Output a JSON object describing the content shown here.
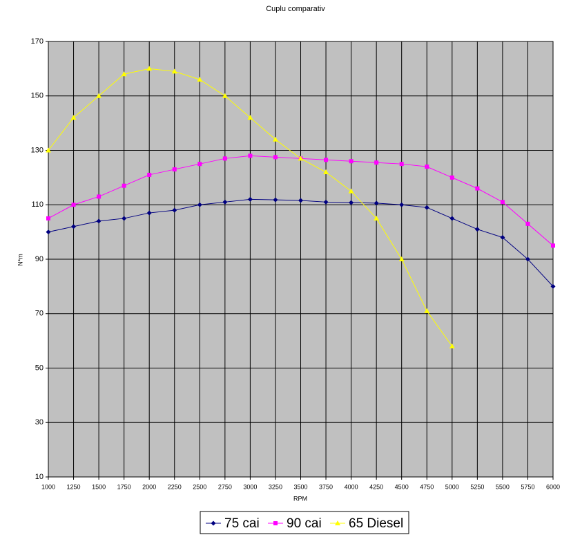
{
  "chart_data": {
    "type": "line",
    "title": "Cuplu comparativ",
    "x_label": "RPM",
    "y_label": "N*m",
    "categories": [
      1000,
      1250,
      1500,
      1750,
      2000,
      2250,
      2500,
      2750,
      3000,
      3250,
      3500,
      3750,
      4000,
      4250,
      4500,
      4750,
      5000,
      5250,
      5500,
      5750,
      6000
    ],
    "ylim": [
      10,
      170
    ],
    "yticks": [
      10,
      30,
      50,
      70,
      90,
      110,
      130,
      150,
      170
    ],
    "grid": true,
    "legend": "bottom",
    "series": [
      {
        "name": "75 cai",
        "color": "#000080",
        "marker": "diamond",
        "values": [
          100,
          102,
          104,
          105,
          107,
          108,
          110,
          111,
          112,
          111.8,
          111.6,
          111,
          110.8,
          110.6,
          110,
          109,
          105,
          101,
          98,
          90,
          80
        ]
      },
      {
        "name": "90 cai",
        "color": "#ff00ff",
        "marker": "square",
        "values": [
          105,
          110,
          113,
          117,
          121,
          123,
          125,
          127,
          128,
          127.5,
          127,
          126.5,
          126,
          125.5,
          125,
          124,
          120,
          116,
          111,
          103,
          95
        ]
      },
      {
        "name": "65 Diesel",
        "color": "#ffff00",
        "marker": "triangle",
        "values": [
          130,
          142,
          150,
          158,
          160,
          159,
          156,
          150,
          142,
          134,
          127,
          122,
          115,
          105,
          90,
          71,
          58,
          null,
          null,
          null,
          null
        ]
      }
    ]
  }
}
